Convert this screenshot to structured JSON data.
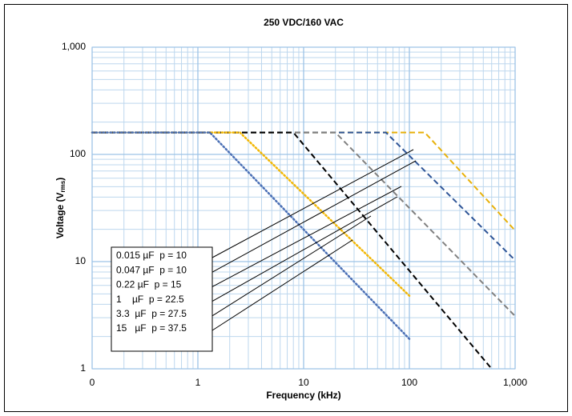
{
  "chart_data": {
    "type": "line",
    "title": "250 VDC/160 VAC",
    "x_label": "Frequency (kHz)",
    "y_label": {
      "text": "Voltage (V",
      "subscript": "rms",
      "suffix": ")"
    },
    "xscale": "log",
    "yscale": "log",
    "xlim": [
      0.1,
      1000
    ],
    "ylim": [
      1,
      1000
    ],
    "xticks": [
      {
        "value": 0.1,
        "label": "0"
      },
      1,
      10,
      100,
      {
        "value": 1000,
        "label": "1,000"
      }
    ],
    "yticks": [
      1,
      10,
      100,
      {
        "value": 1000,
        "label": "1,000"
      }
    ],
    "grid": true,
    "minor_grid": true,
    "series": [
      {
        "name": "0.015 µF  p = 10",
        "color": "#e8b10a",
        "dash": "dashed",
        "x": [
          0.1,
          140,
          1000
        ],
        "values": [
          160,
          160,
          19.5
        ]
      },
      {
        "name": "0.047 µF  p = 10",
        "color": "#2f5597",
        "dash": "dashed",
        "x": [
          0.1,
          60,
          1000
        ],
        "values": [
          160,
          160,
          10.3
        ]
      },
      {
        "name": "0.22 µF  p = 15",
        "color": "#808080",
        "dash": "dashed",
        "x": [
          0.1,
          20,
          1000
        ],
        "values": [
          160,
          160,
          3.1
        ]
      },
      {
        "name": "1    µF  p = 22.5",
        "color": "#000000",
        "dash": "dashed",
        "x": [
          0.1,
          8,
          600
        ],
        "values": [
          160,
          160,
          1
        ]
      },
      {
        "name": "3.3  µF  p = 27.5",
        "color": "#f2b705",
        "dash": "dotted",
        "x": [
          0.1,
          2.5,
          100
        ],
        "values": [
          160,
          160,
          4.8
        ]
      },
      {
        "name": "15   µF  p = 37.5",
        "color": "#4a6fb5",
        "dash": "dotted",
        "x": [
          0.1,
          1.3,
          100
        ],
        "values": [
          160,
          160,
          1.9
        ]
      }
    ]
  }
}
